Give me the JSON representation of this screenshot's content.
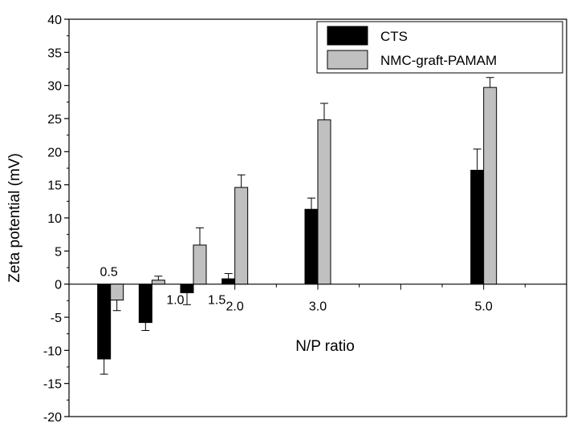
{
  "chart_data": {
    "type": "bar",
    "title": "",
    "xlabel": "N/P ratio",
    "ylabel": "Zeta potential (mV)",
    "ylim": [
      -20,
      40
    ],
    "yticks": [
      -20,
      -15,
      -10,
      -5,
      0,
      5,
      10,
      15,
      20,
      25,
      30,
      35,
      40
    ],
    "x_axis_range": [
      0,
      6
    ],
    "grid": false,
    "legend_position": "top-right",
    "categories": [
      "0.5",
      "1.0",
      "1.5",
      "2.0",
      "3.0",
      "5.0"
    ],
    "x": [
      0.5,
      1.0,
      1.5,
      2.0,
      3.0,
      5.0
    ],
    "series": [
      {
        "name": "CTS",
        "color": "#000000",
        "values": [
          -11.3,
          -5.8,
          -1.3,
          0.8,
          11.3,
          17.2
        ],
        "errors": [
          2.3,
          1.2,
          1.8,
          0.8,
          1.7,
          3.2
        ]
      },
      {
        "name": "NMC-graft-PAMAM",
        "color": "#c0c0c0",
        "values": [
          -2.4,
          0.6,
          5.9,
          14.6,
          24.8,
          29.7
        ],
        "errors": [
          1.6,
          0.6,
          2.6,
          1.9,
          2.5,
          1.5
        ]
      }
    ]
  }
}
